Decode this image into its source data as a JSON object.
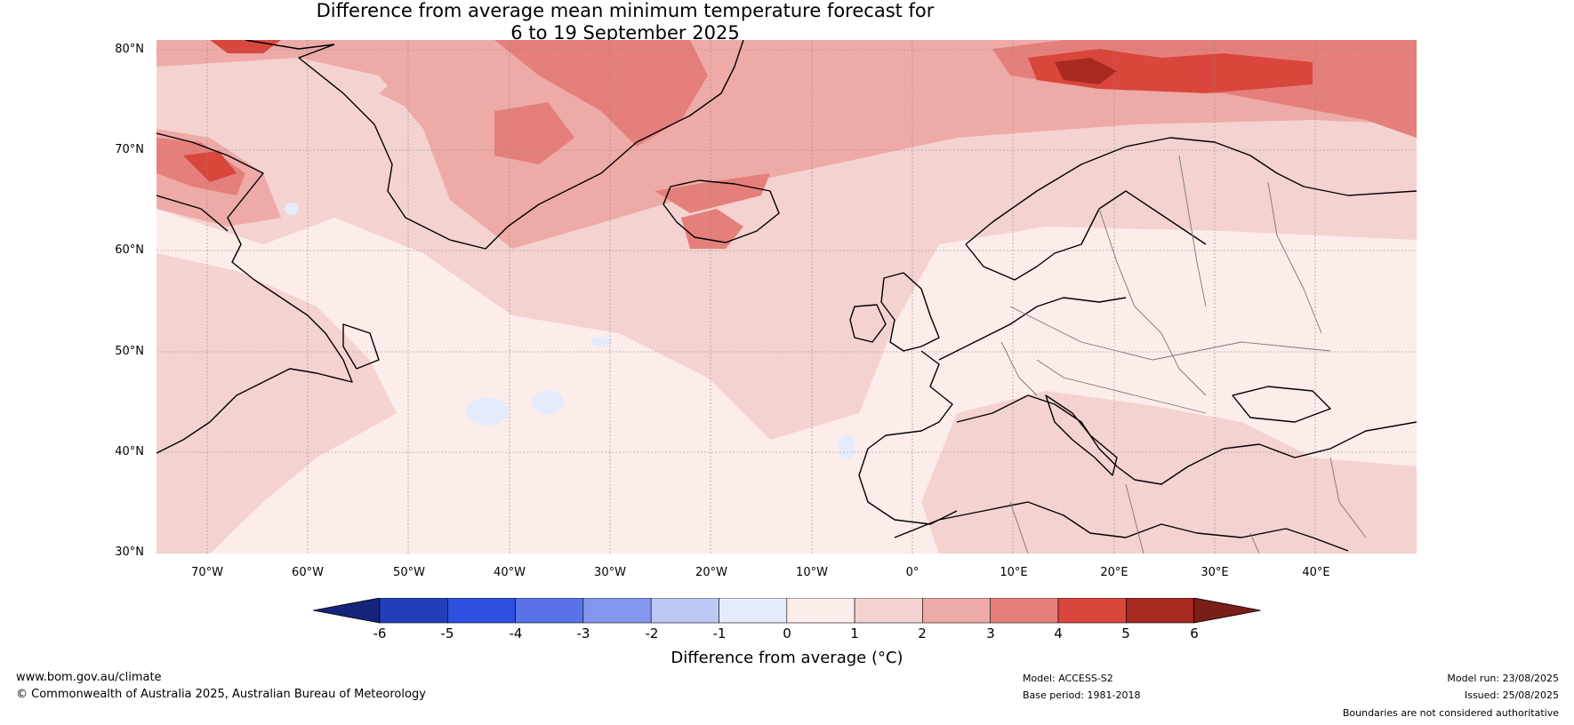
{
  "title": {
    "line1": "Difference from average mean minimum temperature forecast for",
    "line2": "6 to 19 September 2025"
  },
  "map": {
    "lat_labels": [
      "80°N",
      "70°N",
      "60°N",
      "50°N",
      "40°N",
      "30°N"
    ],
    "lon_labels": [
      "70°W",
      "60°W",
      "50°W",
      "40°W",
      "30°W",
      "20°W",
      "10°W",
      "0°",
      "10°E",
      "20°E",
      "30°E",
      "40°E"
    ],
    "extent": {
      "lon_min": -75,
      "lon_max": 50,
      "lat_min": 30,
      "lat_max": 81
    }
  },
  "colorbar": {
    "ticks": [
      "-6",
      "-5",
      "-4",
      "-3",
      "-2",
      "-1",
      "0",
      "1",
      "2",
      "3",
      "4",
      "5",
      "6"
    ],
    "colors": [
      "#15247a",
      "#243dba",
      "#2f4fe0",
      "#5a72e8",
      "#8296ee",
      "#bec8f5",
      "#e6ebfb",
      "#fcecea",
      "#f4d2d0",
      "#eeaaa7",
      "#e57f7b",
      "#d9463c",
      "#a82920",
      "#7a1e18"
    ],
    "label": "Difference from average (°C)"
  },
  "footer": {
    "website": "www.bom.gov.au/climate",
    "copyright": "© Commonwealth of Australia 2025, Australian Bureau of Meteorology",
    "model": "Model: ACCESS-S2",
    "base_period": "Base period: 1981-2018",
    "model_run": "Model run: 23/08/2025",
    "issued": "Issued: 25/08/2025",
    "disclaimer": "Boundaries are not considered authoritative"
  }
}
